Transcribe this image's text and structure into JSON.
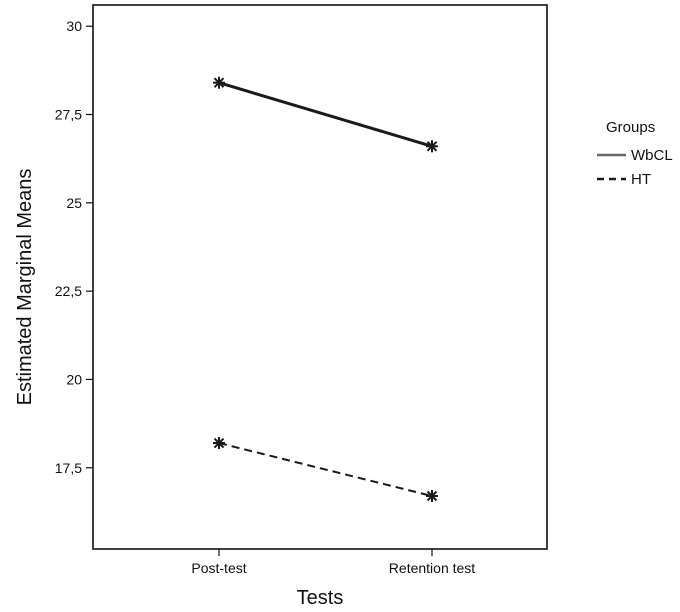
{
  "chart_data": {
    "type": "line",
    "title": "",
    "xlabel": "Tests",
    "ylabel": "Estimated Marginal Means",
    "categories": [
      "Post-test",
      "Retention test"
    ],
    "ylim": [
      15.2,
      30.6
    ],
    "yticks": [
      17.5,
      20,
      22.5,
      25,
      27.5,
      30
    ],
    "ytick_labels": [
      "17,5",
      "20",
      "22,5",
      "25",
      "27,5",
      "30"
    ],
    "grid": false,
    "legend": {
      "title": "Groups",
      "placement": "right"
    },
    "series": [
      {
        "name": "WbCL",
        "values": [
          28.4,
          26.6
        ],
        "line_style": "solid",
        "color": "#1a1a1a",
        "legend_color": "#666666"
      },
      {
        "name": "HT",
        "values": [
          18.2,
          16.7
        ],
        "line_style": "dashed",
        "color": "#1a1a1a",
        "legend_color": "#1a1a1a"
      }
    ]
  }
}
